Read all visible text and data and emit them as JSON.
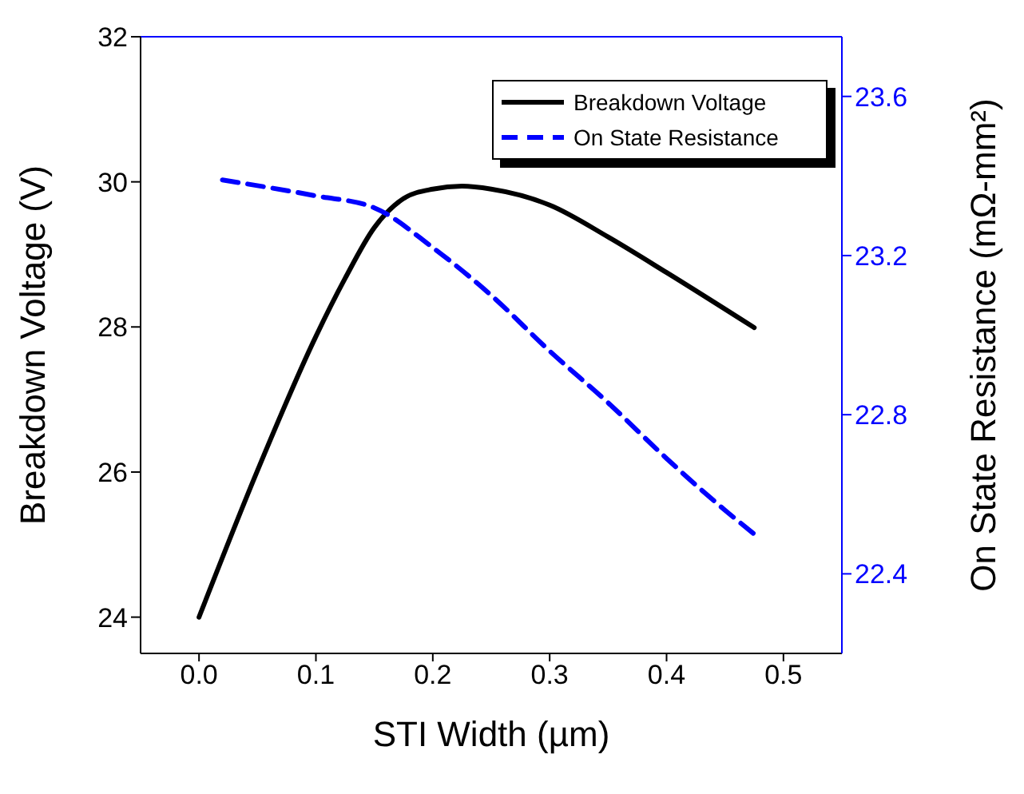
{
  "chart_data": {
    "type": "line",
    "xlabel": "STI Width (µm)",
    "ylabel": "Breakdown Voltage (V)",
    "y2label": "On State Resistance (mΩ-mm²)",
    "xlim": [
      -0.05,
      0.55
    ],
    "xticks": [
      {
        "value": 0,
        "label": "0.0"
      },
      0.1,
      0.2,
      0.3,
      0.4,
      0.5
    ],
    "ylim": [
      23.5,
      32
    ],
    "yticks": [
      24,
      26,
      28,
      30,
      32
    ],
    "y2lim": [
      22.2,
      23.75
    ],
    "y2ticks": [
      22.4,
      22.8,
      23.2,
      23.6
    ],
    "legend": "top right",
    "marker": "none",
    "series": [
      {
        "name": "Breakdown Voltage",
        "color": "#000000",
        "line_style": "solid",
        "x": [
          0,
          0.05,
          0.1,
          0.125,
          0.15,
          0.175,
          0.2,
          0.225,
          0.25,
          0.3,
          0.35,
          0.4,
          0.475
        ],
        "values": [
          24,
          26.02,
          27.87,
          28.67,
          29.37,
          29.77,
          29.9,
          29.94,
          29.9,
          29.68,
          29.24,
          28.75,
          27.99
        ]
      },
      {
        "name": "On State Resistance",
        "color": "#0000ff",
        "line_style": "dashed",
        "axis": "y2",
        "x": [
          0.02,
          0.1,
          0.15,
          0.2,
          0.25,
          0.3,
          0.35,
          0.4,
          0.45,
          0.475
        ],
        "values": [
          23.39,
          23.35,
          23.32,
          23.22,
          23.1,
          22.96,
          22.83,
          22.69,
          22.56,
          22.5
        ]
      }
    ]
  }
}
